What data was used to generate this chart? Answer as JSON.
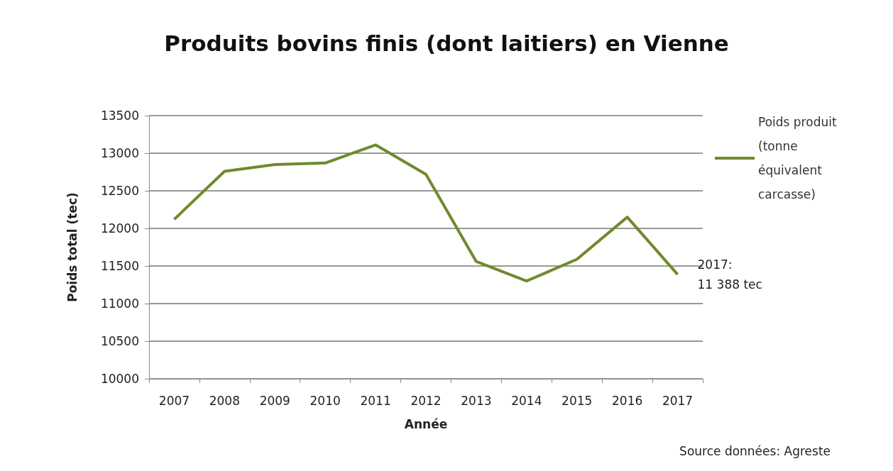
{
  "chart_data": {
    "type": "line",
    "title": "Produits bovins finis (dont laitiers) en Vienne",
    "xlabel": "Année",
    "ylabel": "Poids total (tec)",
    "categories": [
      "2007",
      "2008",
      "2009",
      "2010",
      "2011",
      "2012",
      "2013",
      "2014",
      "2015",
      "2016",
      "2017"
    ],
    "series": [
      {
        "name": "Poids produit (tonne équivalent carcasse)",
        "color": "#6f8a2e",
        "values": [
          12120,
          12760,
          12850,
          12870,
          13110,
          12720,
          11560,
          11300,
          11590,
          12150,
          11388
        ]
      }
    ],
    "ylim": [
      10000,
      13500
    ],
    "yticks": [
      10000,
      10500,
      11000,
      11500,
      12000,
      12500,
      13000,
      13500
    ],
    "grid": "y",
    "legend": "top right",
    "marker": "none",
    "line_style": "solid",
    "annotations": [
      {
        "text": "2017: 11 388 tec",
        "x": "2017",
        "y": 11388
      },
      "Source données: Agreste"
    ]
  }
}
